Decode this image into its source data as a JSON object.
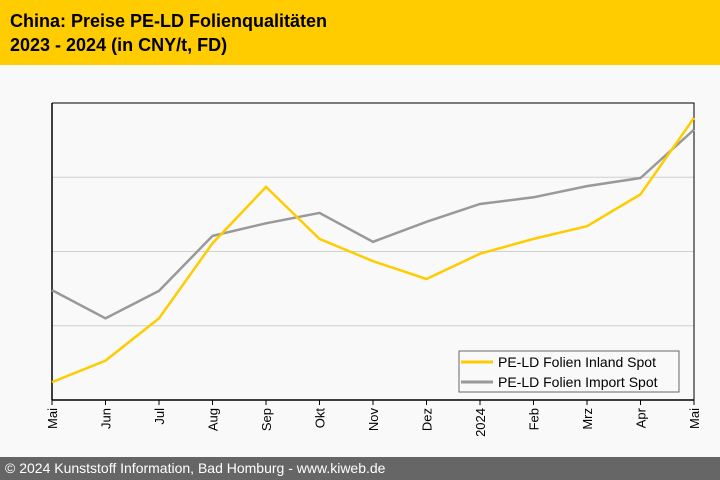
{
  "header": {
    "title_line1": "China: Preise PE-LD Folienqualitäten",
    "title_line2": "2023 - 2024 (in CNY/t, FD)"
  },
  "footer": {
    "text": "© 2024 Kunststoff Information, Bad Homburg - www.kiweb.de"
  },
  "colors": {
    "header": "#ffcc00",
    "inland": "#ffcc00",
    "import": "#999999",
    "footer": "#666666"
  },
  "chart_data": {
    "type": "line",
    "title": "",
    "xlabel": "",
    "ylabel": "",
    "y_tick_labels_shown": false,
    "ylim": [
      0,
      4
    ],
    "grid": "horizontal",
    "legend_position": "bottom-right",
    "categories": [
      "Mai",
      "Jun",
      "Jul",
      "Aug",
      "Sep",
      "Okt",
      "Nov",
      "Dez",
      "2024",
      "Feb",
      "Mrz",
      "Apr",
      "Mai"
    ],
    "series": [
      {
        "name": "PE-LD Folien Inland Spot",
        "color": "#ffcc00",
        "values": [
          0.24,
          0.53,
          1.1,
          2.11,
          2.87,
          2.17,
          1.87,
          1.63,
          1.97,
          2.17,
          2.34,
          2.77,
          3.8
        ]
      },
      {
        "name": "PE-LD Folien Import Spot",
        "color": "#999999",
        "values": [
          1.48,
          1.1,
          1.47,
          2.21,
          2.38,
          2.52,
          2.13,
          2.4,
          2.64,
          2.73,
          2.88,
          2.99,
          3.64
        ]
      }
    ]
  }
}
